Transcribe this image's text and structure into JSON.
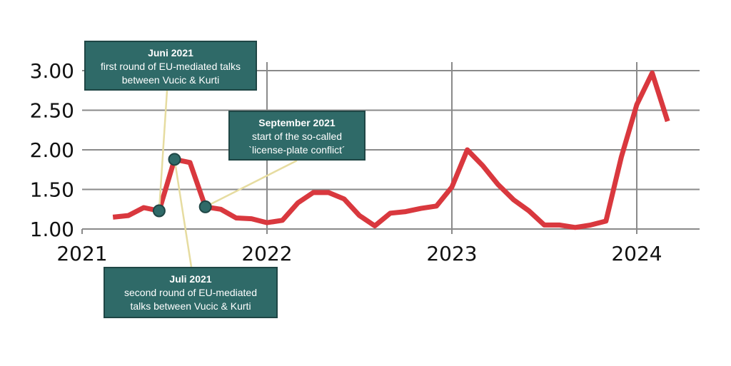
{
  "chart_data": {
    "type": "line",
    "title": "",
    "xlabel": "",
    "ylabel": "",
    "xlim": [
      2021.0,
      2024.35
    ],
    "ylim": [
      1.0,
      3.0
    ],
    "x_ticks": [
      {
        "value": 2021,
        "label": "2021"
      },
      {
        "value": 2022,
        "label": "2022"
      },
      {
        "value": 2023,
        "label": "2023"
      },
      {
        "value": 2024,
        "label": "2024"
      }
    ],
    "y_ticks": [
      {
        "value": 1.0,
        "label": "1.00"
      },
      {
        "value": 1.5,
        "label": "1.50"
      },
      {
        "value": 2.0,
        "label": "2.00"
      },
      {
        "value": 2.5,
        "label": "2.50"
      },
      {
        "value": 3.0,
        "label": "3.00"
      }
    ],
    "grid": true,
    "series": [
      {
        "color": "#d9383e",
        "points": [
          [
            "2021-03",
            1.15
          ],
          [
            "2021-04",
            1.17
          ],
          [
            "2021-05",
            1.27
          ],
          [
            "2021-06",
            1.23
          ],
          [
            "2021-07",
            1.88
          ],
          [
            "2021-08",
            1.84
          ],
          [
            "2021-09",
            1.28
          ],
          [
            "2021-10",
            1.25
          ],
          [
            "2021-11",
            1.14
          ],
          [
            "2021-12",
            1.13
          ],
          [
            "2022-01",
            1.08
          ],
          [
            "2022-02",
            1.11
          ],
          [
            "2022-03",
            1.33
          ],
          [
            "2022-04",
            1.46
          ],
          [
            "2022-05",
            1.46
          ],
          [
            "2022-06",
            1.38
          ],
          [
            "2022-07",
            1.17
          ],
          [
            "2022-08",
            1.04
          ],
          [
            "2022-09",
            1.2
          ],
          [
            "2022-10",
            1.22
          ],
          [
            "2022-11",
            1.26
          ],
          [
            "2022-12",
            1.29
          ],
          [
            "2023-01",
            1.53
          ],
          [
            "2023-02",
            2.0
          ],
          [
            "2023-03",
            1.8
          ],
          [
            "2023-04",
            1.56
          ],
          [
            "2023-05",
            1.37
          ],
          [
            "2023-06",
            1.23
          ],
          [
            "2023-07",
            1.05
          ],
          [
            "2023-08",
            1.05
          ],
          [
            "2023-09",
            1.02
          ],
          [
            "2023-10",
            1.05
          ],
          [
            "2023-11",
            1.1
          ],
          [
            "2023-12",
            1.91
          ],
          [
            "2024-01",
            2.57
          ],
          [
            "2024-02",
            2.97
          ],
          [
            "2024-03",
            2.36
          ]
        ]
      }
    ],
    "annotations": [
      {
        "x": "2021-06",
        "y": 1.23,
        "title": "Juni 2021",
        "text": "first round of EU-mediated talks\nbetween Vucic & Kurti"
      },
      {
        "x": "2021-07",
        "y": 1.88,
        "title": "Juli 2021",
        "text": "second round of EU-mediated\ntalks between Vucic & Kurti"
      },
      {
        "x": "2021-09",
        "y": 1.28,
        "title": "September 2021",
        "text": "start of the so-called\n`license-plate conflict´"
      }
    ]
  },
  "colors": {
    "line": "#d9383e",
    "marker_fill": "#2f6a68",
    "marker_stroke": "#1f4645",
    "leader": "#e6dca0",
    "grid": "#8a8a8a"
  }
}
